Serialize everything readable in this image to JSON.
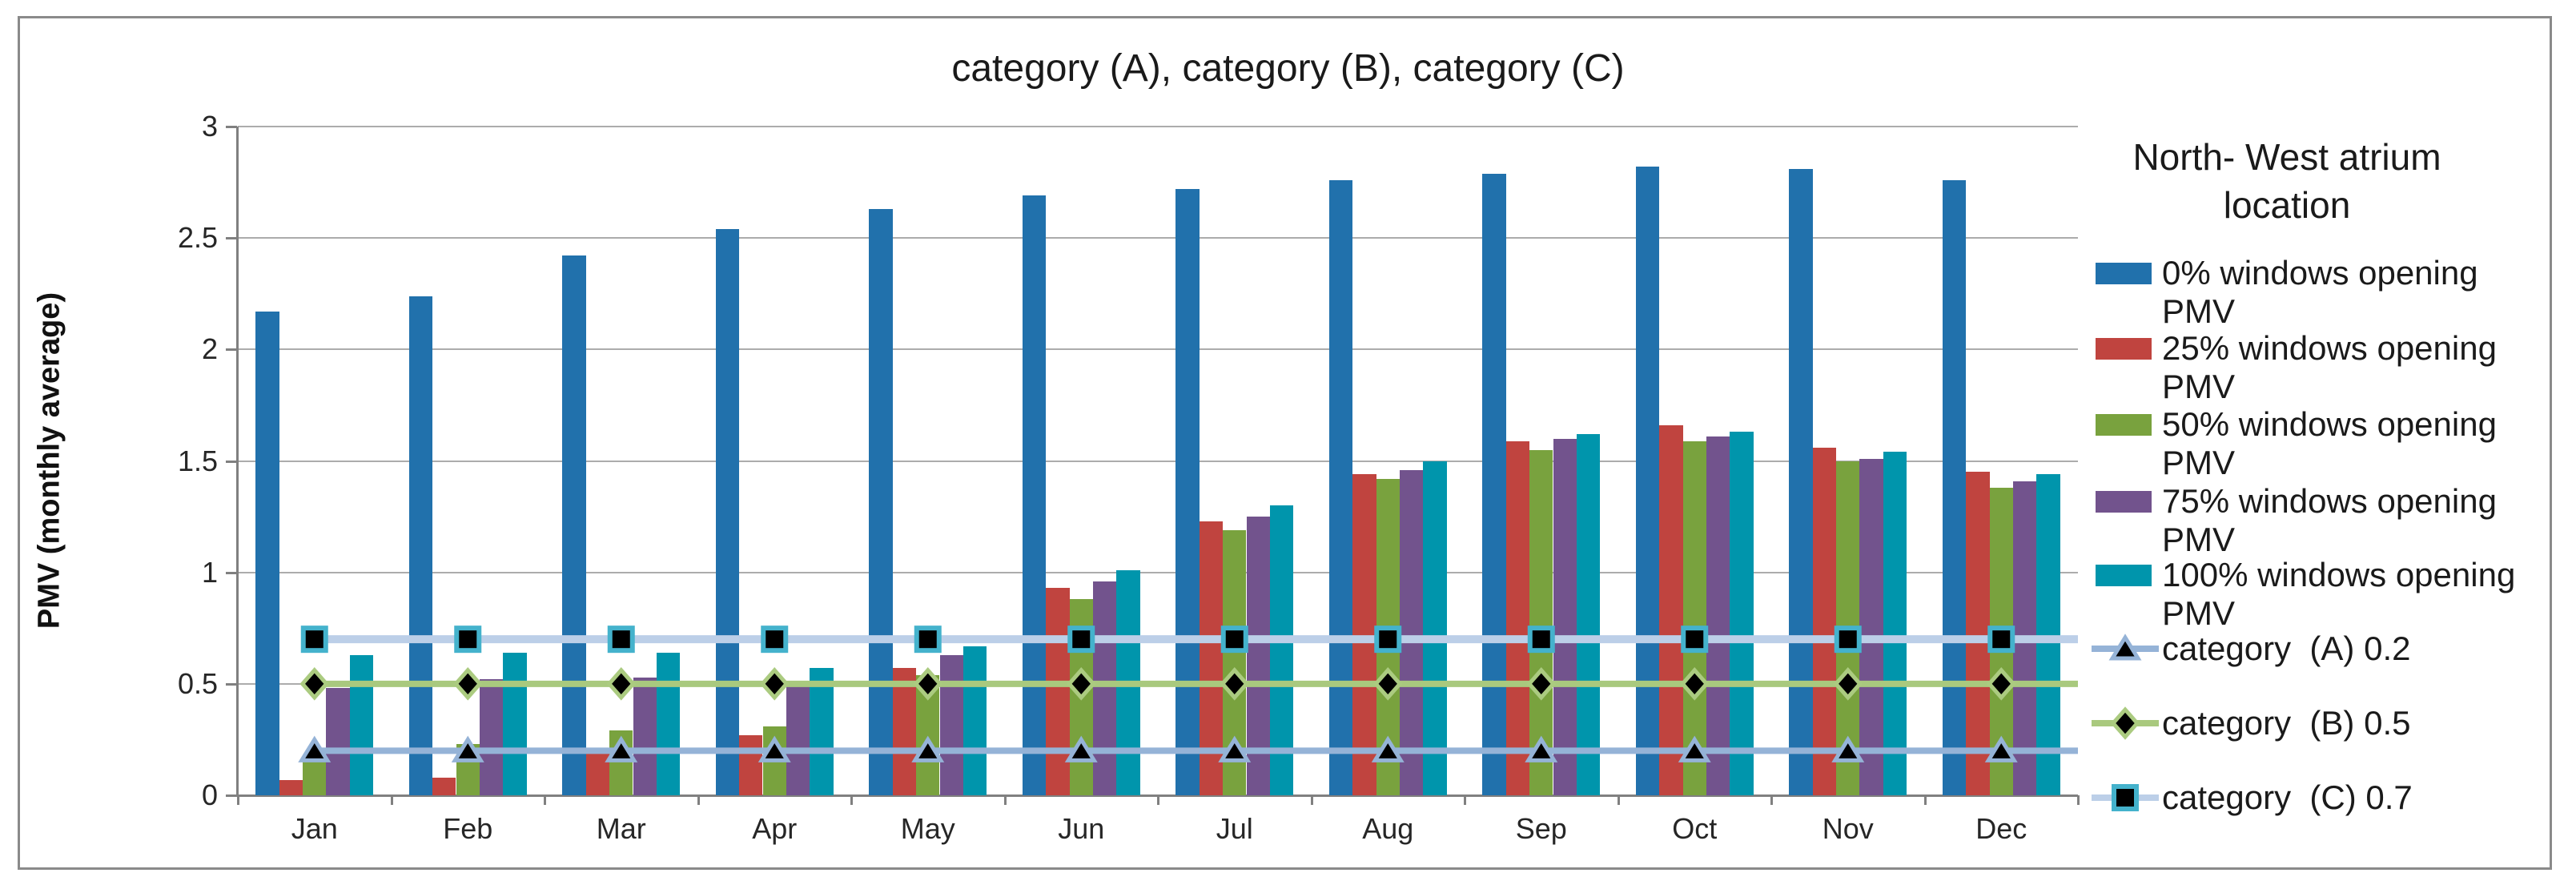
{
  "title": "category (A), category (B), category (C)",
  "y_axis": {
    "label": "PMV (monthly average)",
    "ticks": [
      "0",
      "0.5",
      "1",
      "1.5",
      "2",
      "2.5",
      "3"
    ]
  },
  "legend": {
    "title_line1": "North- West atrium",
    "title_line2": "location"
  },
  "chart_data": {
    "type": "bar",
    "title": "category (A), category (B), category (C)",
    "xlabel": "",
    "ylabel": "PMV (monthly average)",
    "ylim": [
      0,
      3
    ],
    "grid": true,
    "legend_position": "right",
    "legend_title": "North- West atrium location",
    "categories": [
      "Jan",
      "Feb",
      "Mar",
      "Apr",
      "May",
      "Jun",
      "Jul",
      "Aug",
      "Sep",
      "Oct",
      "Nov",
      "Dec"
    ],
    "series": [
      {
        "name": "0% windows opening PMV",
        "color": "#2171AC",
        "values": [
          2.17,
          2.24,
          2.42,
          2.54,
          2.63,
          2.69,
          2.72,
          2.76,
          2.79,
          2.82,
          2.81,
          2.76
        ]
      },
      {
        "name": "25% windows opening PMV",
        "color": "#C0443F",
        "values": [
          0.07,
          0.08,
          0.19,
          0.27,
          0.57,
          0.93,
          1.23,
          1.44,
          1.59,
          1.66,
          1.56,
          1.45
        ]
      },
      {
        "name": "50% windows opening PMV",
        "color": "#79A23E",
        "values": [
          0.15,
          0.23,
          0.29,
          0.31,
          0.54,
          0.88,
          1.19,
          1.42,
          1.55,
          1.59,
          1.5,
          1.38
        ]
      },
      {
        "name": "75% windows opening PMV",
        "color": "#72538D",
        "values": [
          0.48,
          0.52,
          0.53,
          0.49,
          0.63,
          0.96,
          1.25,
          1.46,
          1.6,
          1.61,
          1.51,
          1.41
        ]
      },
      {
        "name": "100% windows opening PMV",
        "color": "#0095AC",
        "values": [
          0.63,
          0.64,
          0.64,
          0.57,
          0.67,
          1.01,
          1.3,
          1.5,
          1.62,
          1.63,
          1.54,
          1.44
        ]
      }
    ],
    "ref_lines": [
      {
        "name": "category  (A) 0.2",
        "value": 0.2,
        "line_color": "#95B3D7",
        "line_width": 8,
        "marker": "triangle",
        "marker_color": "#000000",
        "marker_outline": "#95B3D7"
      },
      {
        "name": "category  (B) 0.5",
        "value": 0.5,
        "line_color": "#A9C97E",
        "line_width": 8,
        "marker": "diamond",
        "marker_color": "#000000",
        "marker_outline": "#ABCB80"
      },
      {
        "name": "category  (C) 0.7",
        "value": 0.7,
        "line_color": "#BCCFE8",
        "line_width": 10,
        "marker": "square",
        "marker_color": "#000000",
        "marker_outline": "#44B2CC"
      }
    ]
  }
}
